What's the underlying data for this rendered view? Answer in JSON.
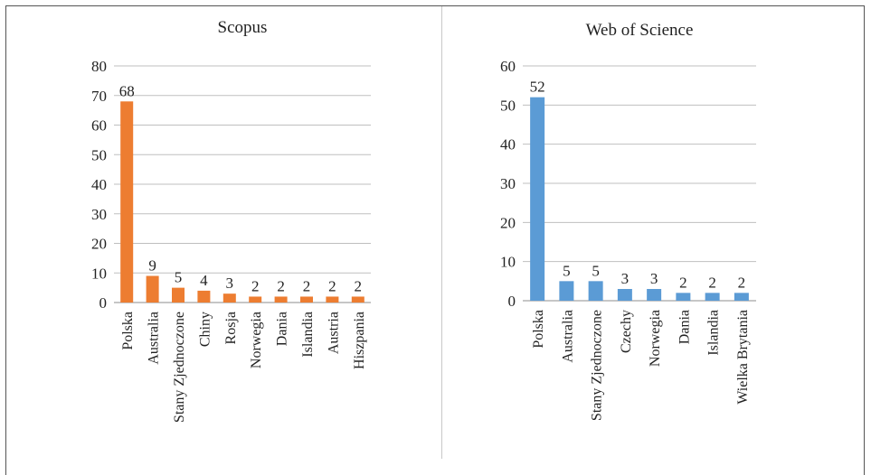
{
  "chart_data": [
    {
      "type": "bar",
      "title": "Scopus",
      "xlabel": "",
      "ylabel": "",
      "categories": [
        "Polska",
        "Australia",
        "Stany Zjednoczone",
        "Chiny",
        "Rosja",
        "Norwegia",
        "Dania",
        "Islandia",
        "Austria",
        "Hiszpania"
      ],
      "values": [
        68,
        9,
        5,
        4,
        3,
        2,
        2,
        2,
        2,
        2
      ],
      "data_labels": [
        "68",
        "9",
        "5",
        "4",
        "3",
        "2",
        "2",
        "2",
        "2",
        "2"
      ],
      "ylim": [
        0,
        80
      ],
      "yticks": [
        "0",
        "10",
        "20",
        "30",
        "40",
        "50",
        "60",
        "70",
        "80"
      ],
      "grid": true,
      "color": "#ED7D31"
    },
    {
      "type": "bar",
      "title": "Web of Science",
      "xlabel": "",
      "ylabel": "",
      "categories": [
        "Polska",
        "Australia",
        "Stany Zjednoczone",
        "Czechy",
        "Norwegia",
        "Dania",
        "Islandia",
        "Wielka Brytania"
      ],
      "values": [
        52,
        5,
        5,
        3,
        3,
        2,
        2,
        2
      ],
      "data_labels": [
        "52",
        "5",
        "5",
        "3",
        "3",
        "2",
        "2",
        "2"
      ],
      "ylim": [
        0,
        60
      ],
      "yticks": [
        "0",
        "10",
        "20",
        "30",
        "40",
        "50",
        "60"
      ],
      "grid": true,
      "color": "#5B9BD5"
    }
  ]
}
